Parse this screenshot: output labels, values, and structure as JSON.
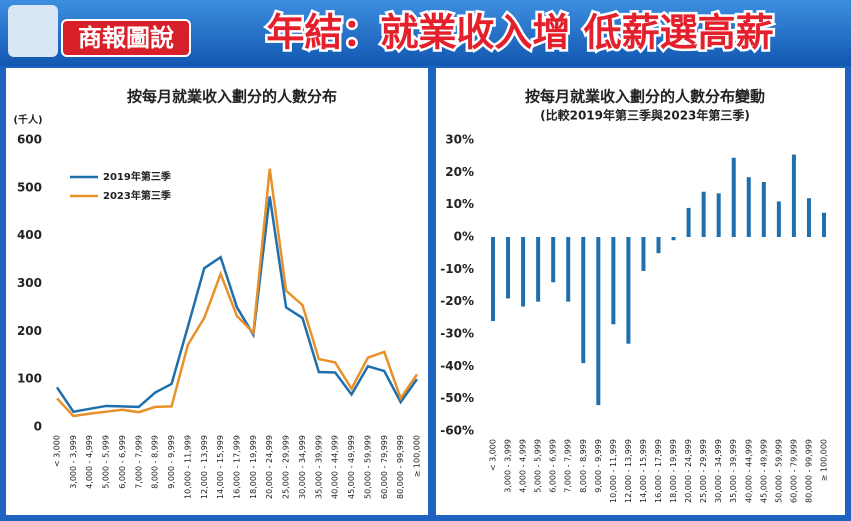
{
  "header": {
    "logo": "商報圖說",
    "title": "年結：就業收入增 低薪選高薪"
  },
  "chart_data": [
    {
      "type": "line",
      "title": "按每月就業收入劃分的人數分布",
      "y_label": "(千人)",
      "categories": [
        "< 3,000",
        "3,000 - 3,999",
        "4,000 - 4,999",
        "5,000 - 5,999",
        "6,000 - 6,999",
        "7,000 - 7,999",
        "8,000 - 8,999",
        "9,000 - 9,999",
        "10,000 - 11,999",
        "12,000 - 13,999",
        "14,000 - 15,999",
        "16,000 - 17,999",
        "18,000 - 19,999",
        "20,000 - 24,999",
        "25,000 - 29,999",
        "30,000 - 34,999",
        "35,000 - 39,999",
        "40,000 - 44,999",
        "45,000 - 49,999",
        "50,000 - 59,999",
        "60,000 - 79,999",
        "80,000 - 99,999",
        "≥ 100,000"
      ],
      "series": [
        {
          "name": "2019年第三季",
          "color": "#1f6fad",
          "values": [
            83,
            32,
            38,
            44,
            43,
            42,
            72,
            90,
            210,
            332,
            355,
            250,
            193,
            482,
            250,
            228,
            115,
            114,
            68,
            127,
            117,
            52,
            100
          ]
        },
        {
          "name": "2023年第三季",
          "color": "#e8912a",
          "values": [
            60,
            23,
            28,
            32,
            36,
            31,
            42,
            43,
            172,
            228,
            320,
            232,
            197,
            540,
            285,
            255,
            142,
            135,
            80,
            145,
            157,
            60,
            110
          ]
        }
      ],
      "ylim": [
        0,
        600
      ],
      "yticks": [
        0,
        100,
        200,
        300,
        400,
        500,
        600
      ]
    },
    {
      "type": "bar",
      "title": "按每月就業收入劃分的人數分布變動",
      "subtitle": "(比較2019年第三季與2023年第三季)",
      "categories": [
        "< 3,000",
        "3,000 - 3,999",
        "4,000 - 4,999",
        "5,000 - 5,999",
        "6,000 - 6,999",
        "7,000 - 7,999",
        "8,000 - 8,999",
        "9,000 - 9,999",
        "10,000 - 11,999",
        "12,000 - 13,999",
        "14,000 - 15,999",
        "16,000 - 17,999",
        "18,000 - 19,999",
        "20,000 - 24,999",
        "25,000 - 29,999",
        "30,000 - 34,999",
        "35,000 - 39,999",
        "40,000 - 44,999",
        "45,000 - 49,999",
        "50,000 - 59,999",
        "60,000 - 79,999",
        "80,000 - 99,999",
        "≥ 100,000"
      ],
      "values": [
        -26,
        -19,
        -21.5,
        -20,
        -14,
        -20,
        -39,
        -52,
        -27,
        -33,
        -10.5,
        -5,
        -1,
        9,
        14,
        13.5,
        24.5,
        18.5,
        17,
        11,
        25.5,
        12,
        7.5
      ],
      "color": "#1f6fad",
      "ylim": [
        -60,
        30
      ],
      "yticks": [
        {
          "value": -60,
          "label": "-60%"
        },
        {
          "value": -50,
          "label": "-50%"
        },
        {
          "value": -40,
          "label": "-40%"
        },
        {
          "value": -30,
          "label": "-30%"
        },
        {
          "value": -20,
          "label": "-20%"
        },
        {
          "value": -10,
          "label": "-10%"
        },
        {
          "value": 0,
          "label": "0%"
        },
        {
          "value": 10,
          "label": "10%"
        },
        {
          "value": 20,
          "label": "20%"
        },
        {
          "value": 30,
          "label": "30%"
        }
      ]
    }
  ]
}
